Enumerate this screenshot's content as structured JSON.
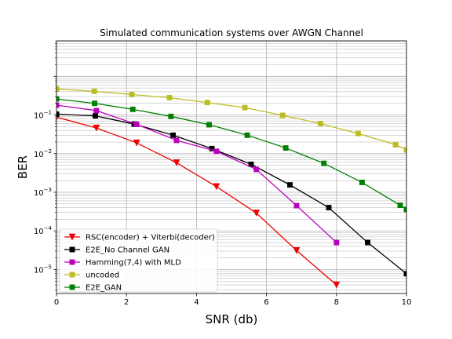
{
  "chart_data": {
    "type": "line",
    "title": "Simulated communication systems over AWGN Channel",
    "xlabel": "SNR (db)",
    "ylabel": "BER",
    "xlim": [
      0,
      10
    ],
    "ylim_log10": [
      -5.62,
      0.92
    ],
    "yscale": "log",
    "grid": true,
    "legend_position": "bottom-left",
    "x_ticks": [
      0,
      2,
      4,
      6,
      8,
      10
    ],
    "x_tick_labels": [
      "0",
      "2",
      "4",
      "6",
      "8",
      "10"
    ],
    "y_ticks": [
      -5,
      -4,
      -3,
      -2,
      -1
    ],
    "y_tick_bases": [
      "10",
      "10",
      "10",
      "10",
      "10"
    ],
    "y_tick_exponents": [
      "−5",
      "−4",
      "−3",
      "−2",
      "−1"
    ],
    "series": [
      {
        "name": "RSC(encoder) + Viterbi(decoder)",
        "color": "#ee0000",
        "marker": "triangle-down",
        "x": [
          0,
          1.14,
          2.29,
          3.43,
          4.57,
          5.71,
          6.86,
          8.0
        ],
        "y": [
          0.088,
          0.046,
          0.019,
          0.0058,
          0.0014,
          0.00029,
          3.1e-05,
          4e-06
        ]
      },
      {
        "name": "E2E_No Channel GAN",
        "color": "#000000",
        "marker": "square",
        "x": [
          0,
          1.11,
          2.22,
          3.33,
          4.44,
          5.56,
          6.67,
          7.78,
          8.89,
          10.0
        ],
        "y": [
          0.105,
          0.095,
          0.058,
          0.03,
          0.0135,
          0.0053,
          0.00155,
          0.0004,
          5e-05,
          7.8e-06
        ]
      },
      {
        "name": "Hamming(7,4) with MLD",
        "color": "#bb00bb",
        "marker": "square",
        "x": [
          0,
          1.14,
          2.29,
          3.43,
          4.57,
          5.71,
          6.86,
          8.0
        ],
        "y": [
          0.18,
          0.13,
          0.057,
          0.022,
          0.0115,
          0.0039,
          0.00045,
          5e-05
        ]
      },
      {
        "name": "uncoded",
        "color": "#bcbd22",
        "marker": "square",
        "x": [
          0,
          1.08,
          2.15,
          3.23,
          4.31,
          5.38,
          6.46,
          7.54,
          8.62,
          9.69,
          10.0
        ],
        "y": [
          0.47,
          0.41,
          0.34,
          0.28,
          0.21,
          0.155,
          0.098,
          0.06,
          0.033,
          0.017,
          0.0125
        ]
      },
      {
        "name": "E2E_GAN",
        "color": "#008000",
        "marker": "square",
        "x": [
          0,
          1.09,
          2.18,
          3.27,
          4.36,
          5.45,
          6.55,
          7.64,
          8.73,
          9.82,
          10.0
        ],
        "y": [
          0.26,
          0.2,
          0.14,
          0.092,
          0.056,
          0.03,
          0.014,
          0.0056,
          0.0018,
          0.00046,
          0.00036
        ]
      }
    ]
  }
}
